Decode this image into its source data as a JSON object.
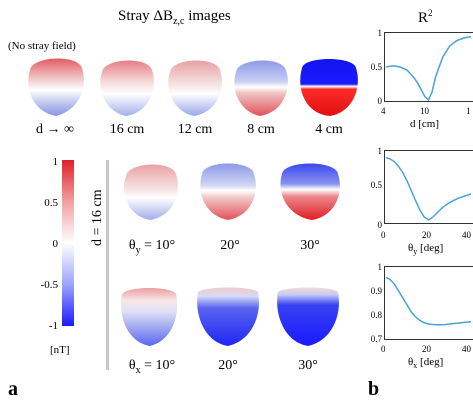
{
  "figure": {
    "title": "Stray ΔB",
    "title_sub": "z,c",
    "title_rest": " images",
    "no_stray_label": "(No stray field)",
    "panel_a": "a",
    "panel_b": "b",
    "row1_labels": [
      "d → ∞",
      "16 cm",
      "12 cm",
      "8 cm",
      "4 cm"
    ],
    "vertical_label": "d = 16 cm",
    "row2_labels": [
      "θ",
      "y",
      " = 10°",
      "20°",
      "30°"
    ],
    "row3_labels": [
      "θ",
      "x",
      " = 10°",
      "20°",
      "30°"
    ],
    "colorbar": {
      "ticks": [
        "1",
        "0.5",
        "0",
        "-0.5",
        "-1"
      ],
      "unit": "[nT]",
      "colors": {
        "top": "#e0202c",
        "middle": "#ffffff",
        "bottom": "#1a1aff"
      }
    }
  },
  "chart_data": [
    {
      "type": "line",
      "title": "R²",
      "title_base": "R",
      "title_sup": "2",
      "xlabel": "d [cm]",
      "x_ticks": [
        "4",
        "10",
        "1"
      ],
      "y_ticks": [
        "1",
        "0.5",
        "0"
      ],
      "xlim": [
        4,
        16
      ],
      "ylim": [
        0,
        1
      ],
      "x": [
        4,
        5,
        6,
        7,
        8,
        8.5,
        9,
        9.5,
        10,
        10.5,
        11,
        12,
        13,
        14,
        15,
        16
      ],
      "y": [
        0.5,
        0.52,
        0.5,
        0.45,
        0.33,
        0.25,
        0.15,
        0.05,
        0.0,
        0.12,
        0.35,
        0.65,
        0.82,
        0.9,
        0.94,
        0.96
      ],
      "color": "#4aa3d6"
    },
    {
      "type": "line",
      "xlabel": "θy [deg]",
      "xlabel_base": "θ",
      "xlabel_sub": "y",
      "xlabel_unit": " [deg]",
      "x_ticks": [
        "0",
        "20",
        "40"
      ],
      "y_ticks": [
        "1",
        "0.5",
        "0"
      ],
      "xlim": [
        0,
        40
      ],
      "ylim": [
        0,
        1
      ],
      "x": [
        0,
        2,
        4,
        6,
        8,
        10,
        12,
        14,
        16,
        18,
        20,
        22,
        24,
        26,
        28,
        30,
        32,
        34,
        36,
        38,
        40
      ],
      "y": [
        0.92,
        0.9,
        0.86,
        0.79,
        0.7,
        0.58,
        0.44,
        0.3,
        0.17,
        0.07,
        0.03,
        0.07,
        0.13,
        0.19,
        0.24,
        0.28,
        0.31,
        0.34,
        0.36,
        0.38,
        0.4
      ],
      "color": "#4aa3d6"
    },
    {
      "type": "line",
      "xlabel": "θx [deg]",
      "xlabel_base": "θ",
      "xlabel_sub": "x",
      "xlabel_unit": " [deg]",
      "x_ticks": [
        "0",
        "20",
        "40"
      ],
      "y_ticks": [
        "1",
        "0.9",
        "0.8",
        "0.7"
      ],
      "xlim": [
        0,
        40
      ],
      "ylim": [
        0.7,
        1
      ],
      "x": [
        0,
        2,
        4,
        6,
        8,
        10,
        12,
        14,
        16,
        18,
        20,
        22,
        24,
        26,
        28,
        30,
        32,
        34,
        36,
        38,
        40
      ],
      "y": [
        0.96,
        0.95,
        0.93,
        0.9,
        0.87,
        0.84,
        0.81,
        0.79,
        0.775,
        0.765,
        0.76,
        0.758,
        0.757,
        0.757,
        0.758,
        0.76,
        0.762,
        0.764,
        0.766,
        0.768,
        0.77
      ],
      "color": "#4aa3d6"
    }
  ]
}
